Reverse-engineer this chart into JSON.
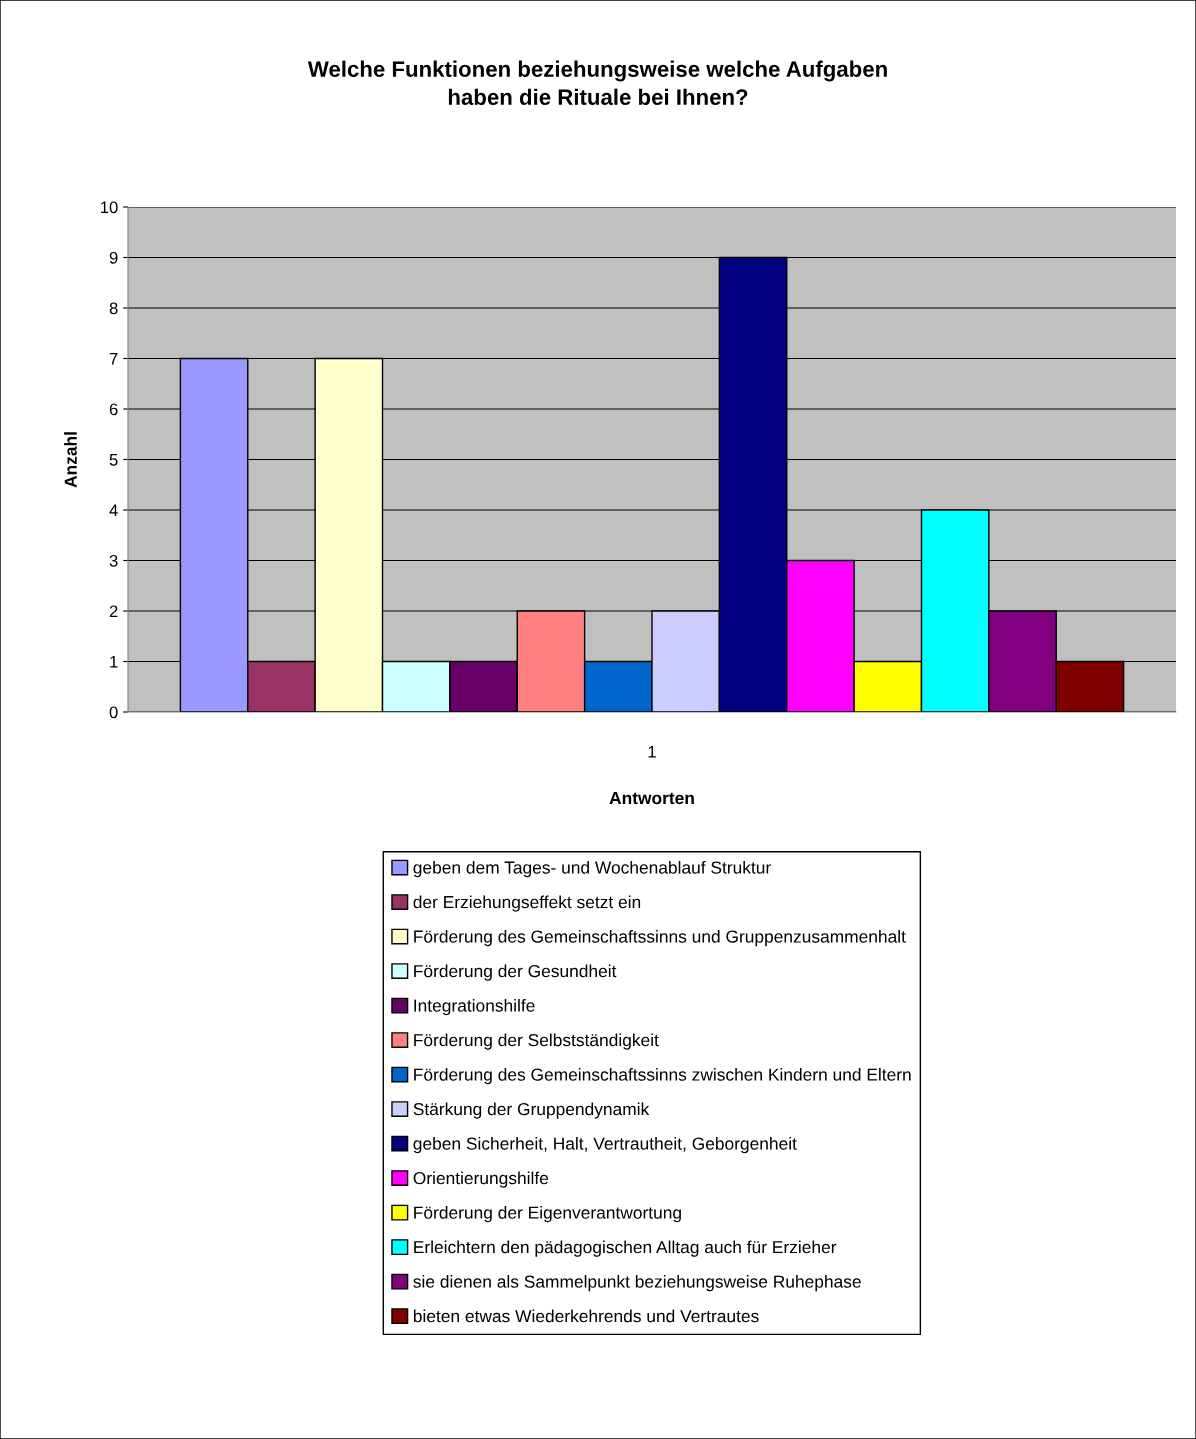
{
  "chart_data": {
    "type": "bar",
    "title": "Welche Funktionen beziehungsweise welche Aufgaben\nhaben die Rituale bei Ihnen?",
    "xlabel": "Antworten",
    "ylabel": "Anzahl",
    "categories": [
      "1"
    ],
    "series": [
      {
        "name": "geben dem Tages- und Wochenablauf Struktur",
        "color": "#9999ff",
        "values": [
          7
        ]
      },
      {
        "name": "der Erziehungseffekt setzt ein",
        "color": "#993366",
        "values": [
          1
        ]
      },
      {
        "name": "Förderung des Gemeinschaftssinns und Gruppenzusammenhalt",
        "color": "#ffffcc",
        "values": [
          7
        ]
      },
      {
        "name": "Förderung der Gesundheit",
        "color": "#ccffff",
        "values": [
          1
        ]
      },
      {
        "name": "Integrationshilfe",
        "color": "#660066",
        "values": [
          1
        ]
      },
      {
        "name": "Förderung der Selbstständigkeit",
        "color": "#ff8080",
        "values": [
          2
        ]
      },
      {
        "name": "Förderung des Gemeinschaftssinns zwischen Kindern und Eltern",
        "color": "#0066cc",
        "values": [
          1
        ]
      },
      {
        "name": "Stärkung der Gruppendynamik",
        "color": "#ccccff",
        "values": [
          2
        ]
      },
      {
        "name": "geben Sicherheit, Halt, Vertrautheit, Geborgenheit",
        "color": "#000080",
        "values": [
          9
        ]
      },
      {
        "name": "Orientierungshilfe",
        "color": "#ff00ff",
        "values": [
          3
        ]
      },
      {
        "name": "Förderung der Eigenverantwortung",
        "color": "#ffff00",
        "values": [
          1
        ]
      },
      {
        "name": "Erleichtern den pädagogischen Alltag auch für Erzieher",
        "color": "#00ffff",
        "values": [
          4
        ]
      },
      {
        "name": "sie dienen als Sammelpunkt beziehungsweise Ruhephase",
        "color": "#800080",
        "values": [
          2
        ]
      },
      {
        "name": "bieten etwas Wiederkehrends und Vertrautes",
        "color": "#800000",
        "values": [
          1
        ]
      }
    ],
    "ylim": [
      0,
      10
    ],
    "yticks": [
      0,
      1,
      2,
      3,
      4,
      5,
      6,
      7,
      8,
      9,
      10
    ],
    "grid": "y",
    "legend": "bottom"
  }
}
